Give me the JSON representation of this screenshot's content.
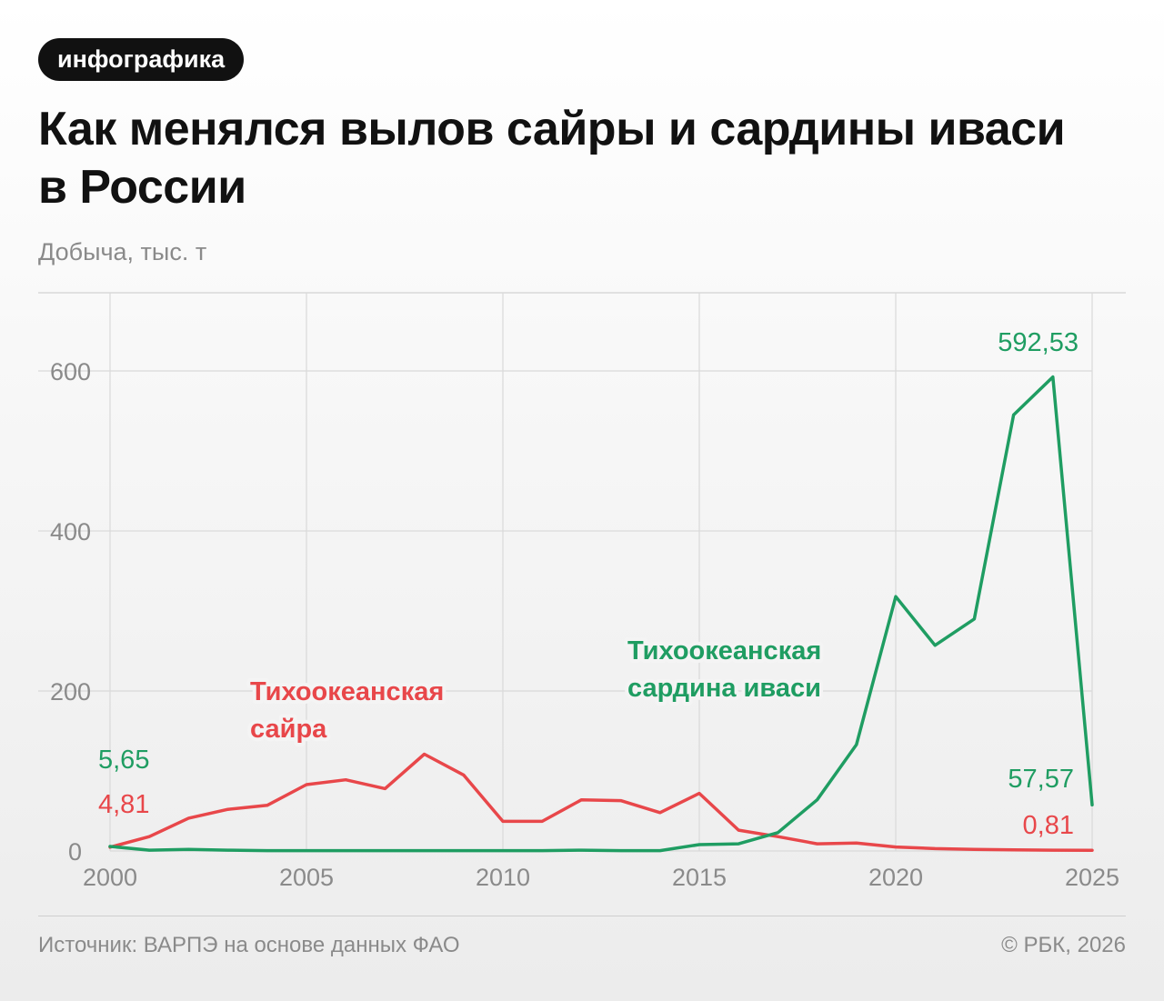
{
  "badge": "инфографика",
  "title": "Как менялся вылов сайры и сардины иваси в России",
  "footer": {
    "source": "Источник: ВАРПЭ на основе данных ФАО",
    "copyright": "© РБК, 2026"
  },
  "colors": {
    "saury": "#e8474a",
    "sardine": "#1f9d62",
    "grid": "#d9d9d9",
    "axis_text": "#8a8a8a"
  },
  "chart_data": {
    "type": "line",
    "ylabel": "Добыча, тыс. т",
    "xlim": [
      2000,
      2025
    ],
    "ylim": [
      0,
      690
    ],
    "x_ticks": [
      2000,
      2005,
      2010,
      2015,
      2020,
      2025
    ],
    "y_ticks": [
      0,
      200,
      400,
      600
    ],
    "grid": true,
    "x": [
      2000,
      2001,
      2002,
      2003,
      2004,
      2005,
      2006,
      2007,
      2008,
      2009,
      2010,
      2011,
      2012,
      2013,
      2014,
      2015,
      2016,
      2017,
      2018,
      2019,
      2020,
      2021,
      2022,
      2023,
      2024,
      2025
    ],
    "series": [
      {
        "name": "Тихоокеанская сайра",
        "label_lines": [
          "Тихоокеанская",
          "сайра"
        ],
        "color_key": "saury",
        "values": [
          4.81,
          18,
          41,
          52,
          57,
          83,
          89,
          78,
          121,
          95,
          37,
          37,
          64,
          63,
          48,
          72,
          26,
          18,
          9,
          10,
          5,
          3,
          2,
          1.5,
          1,
          0.81
        ],
        "start_label": "4,81",
        "end_label": "0,81"
      },
      {
        "name": "Тихоокеанская сардина иваси",
        "label_lines": [
          "Тихоокеанская",
          "сардина иваси"
        ],
        "color_key": "sardine",
        "values": [
          5.65,
          1,
          2,
          1,
          0.5,
          0.5,
          0.5,
          0.5,
          0.5,
          0.5,
          0.5,
          0.5,
          1,
          0.5,
          0.5,
          8,
          9,
          23,
          64,
          133,
          318,
          257,
          290,
          545,
          592.53,
          57.57
        ],
        "start_label": "5,65",
        "end_label": "57,57",
        "peak_label": "592,53"
      }
    ]
  }
}
